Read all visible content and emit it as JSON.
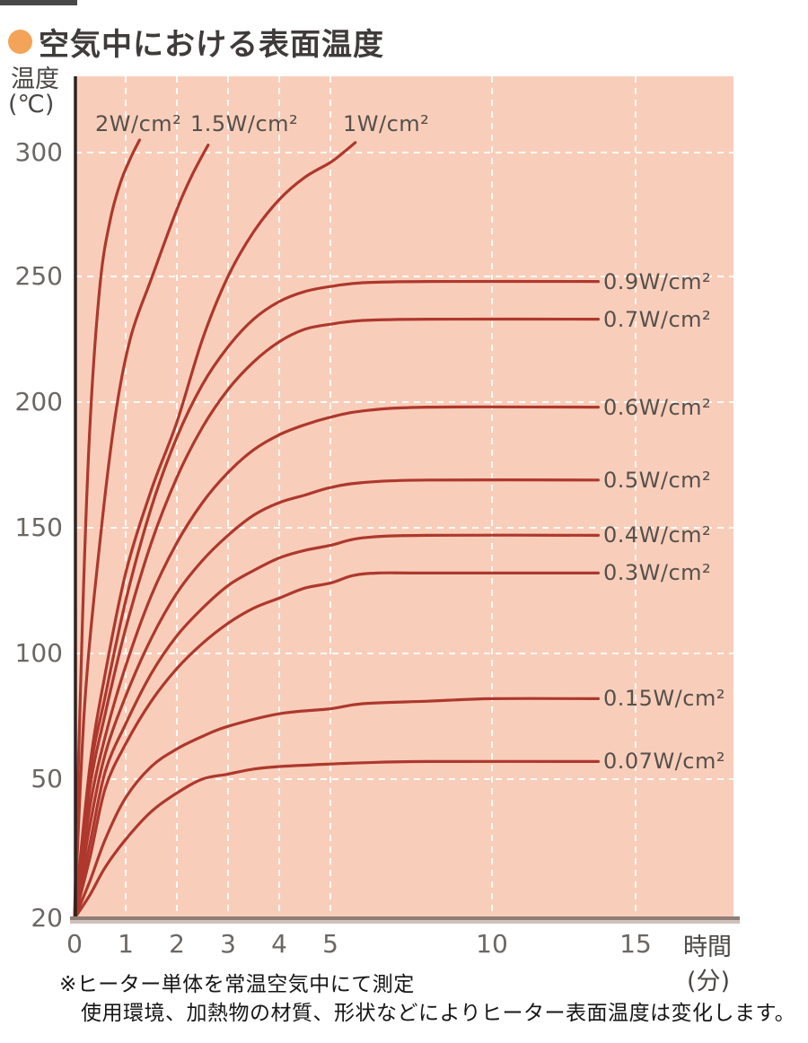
{
  "page": {
    "title": "空気中における表面温度",
    "y_axis_unit_line1": "温度",
    "y_axis_unit_line2": "(℃)",
    "x_axis_unit_line1": "時間",
    "x_axis_unit_line2": "(分)",
    "footnote_line1": "※ヒーター単体を常温空気中にて測定",
    "footnote_line2": "使用環境、加熱物の材質、形状などによりヒーター表面温度は変化します。"
  },
  "colors": {
    "plot_background": "#f8ceba",
    "curve": "#ae382d",
    "grid": "#ffffff",
    "axis": "#2b2422",
    "bottom_bar_dark": "#8f7d76",
    "bottom_bar_light": "#cdc1ba",
    "bullet_accent": "#f3a458",
    "tick_text": "#6b6765",
    "curve_label_text": "#56504b"
  },
  "chart_data": {
    "type": "line",
    "title": "空気中における表面温度",
    "xlabel": "時間(分)",
    "ylabel": "温度(℃)",
    "x_ticks": [
      0,
      1,
      2,
      3,
      4,
      5,
      10,
      15
    ],
    "y_ticks": [
      20,
      50,
      100,
      150,
      200,
      250,
      300
    ],
    "xlim": [
      0,
      15
    ],
    "ylim": [
      20,
      310
    ],
    "grid": true,
    "grid_style": "white dashed",
    "x_scale_note": "x axis compressed beyond 5 minutes",
    "legend_position": "labels at curve ends",
    "series": [
      {
        "name": "2W/cm2",
        "label": "2W/cm²",
        "label_side": "top",
        "plateau_c": null,
        "points": [
          [
            0,
            20
          ],
          [
            0.15,
            110
          ],
          [
            0.3,
            190
          ],
          [
            0.5,
            247
          ],
          [
            0.7,
            273
          ],
          [
            0.9,
            288
          ],
          [
            1.1,
            298
          ],
          [
            1.27,
            305
          ]
        ]
      },
      {
        "name": "1.5W/cm2",
        "label": "1.5W/cm²",
        "label_side": "top",
        "plateau_c": null,
        "points": [
          [
            0,
            20
          ],
          [
            0.2,
            80
          ],
          [
            0.5,
            145
          ],
          [
            0.8,
            195
          ],
          [
            1.1,
            226
          ],
          [
            1.5,
            249
          ],
          [
            2.0,
            277
          ],
          [
            2.3,
            291
          ],
          [
            2.61,
            303
          ]
        ]
      },
      {
        "name": "1W/cm2",
        "label": "1W/cm²",
        "label_side": "top",
        "plateau_c": null,
        "points": [
          [
            0,
            20
          ],
          [
            0.3,
            55
          ],
          [
            0.6,
            92
          ],
          [
            1.0,
            132
          ],
          [
            1.5,
            165
          ],
          [
            2.0,
            192
          ],
          [
            2.5,
            225
          ],
          [
            3.0,
            250
          ],
          [
            3.5,
            268
          ],
          [
            4.0,
            281
          ],
          [
            4.5,
            290
          ],
          [
            5.0,
            296
          ],
          [
            5.4,
            300
          ],
          [
            5.77,
            304
          ]
        ]
      },
      {
        "name": "0.9W/cm2",
        "label": "0.9W/cm²",
        "label_side": "right",
        "plateau_c": 248,
        "points": [
          [
            0,
            20
          ],
          [
            0.3,
            52
          ],
          [
            0.6,
            83
          ],
          [
            1.0,
            121
          ],
          [
            1.5,
            158
          ],
          [
            2.0,
            186
          ],
          [
            2.5,
            207
          ],
          [
            3.0,
            222
          ],
          [
            3.5,
            233
          ],
          [
            4.0,
            240
          ],
          [
            4.5,
            244
          ],
          [
            5.0,
            246
          ],
          [
            6,
            247.5
          ],
          [
            8,
            248
          ],
          [
            13.7,
            248
          ]
        ]
      },
      {
        "name": "0.7W/cm2",
        "label": "0.7W/cm²",
        "label_side": "right",
        "plateau_c": 233,
        "points": [
          [
            0,
            20
          ],
          [
            0.3,
            48
          ],
          [
            0.6,
            76
          ],
          [
            1.0,
            110
          ],
          [
            1.5,
            144
          ],
          [
            2.0,
            170
          ],
          [
            2.5,
            190
          ],
          [
            3.0,
            205
          ],
          [
            3.5,
            216
          ],
          [
            4.0,
            224
          ],
          [
            4.5,
            229
          ],
          [
            5.0,
            231
          ],
          [
            6,
            232.5
          ],
          [
            8,
            233
          ],
          [
            13.7,
            233
          ]
        ]
      },
      {
        "name": "0.6W/cm2",
        "label": "0.6W/cm²",
        "label_side": "right",
        "plateau_c": 198,
        "points": [
          [
            0,
            20
          ],
          [
            0.3,
            44
          ],
          [
            0.6,
            67
          ],
          [
            1.0,
            95
          ],
          [
            1.5,
            123
          ],
          [
            2.0,
            144
          ],
          [
            2.5,
            160
          ],
          [
            3.0,
            172
          ],
          [
            3.5,
            181
          ],
          [
            4.0,
            187
          ],
          [
            4.5,
            191
          ],
          [
            5.0,
            194
          ],
          [
            6,
            196.5
          ],
          [
            8,
            198
          ],
          [
            13.7,
            198
          ]
        ]
      },
      {
        "name": "0.5W/cm2",
        "label": "0.5W/cm²",
        "label_side": "right",
        "plateau_c": 169,
        "points": [
          [
            0,
            20
          ],
          [
            0.3,
            40
          ],
          [
            0.6,
            60
          ],
          [
            1.0,
            83
          ],
          [
            1.5,
            106
          ],
          [
            2.0,
            124
          ],
          [
            2.5,
            137
          ],
          [
            3.0,
            147
          ],
          [
            3.5,
            155
          ],
          [
            4.0,
            160
          ],
          [
            4.5,
            163
          ],
          [
            5.0,
            166
          ],
          [
            6,
            168
          ],
          [
            8,
            169
          ],
          [
            13.7,
            169
          ]
        ]
      },
      {
        "name": "0.4W/cm2",
        "label": "0.4W/cm²",
        "label_side": "right",
        "plateau_c": 147,
        "points": [
          [
            0,
            20
          ],
          [
            0.3,
            36
          ],
          [
            0.6,
            53
          ],
          [
            1.0,
            72
          ],
          [
            1.5,
            92
          ],
          [
            2.0,
            107
          ],
          [
            2.5,
            118
          ],
          [
            3.0,
            127
          ],
          [
            3.5,
            133
          ],
          [
            4.0,
            138
          ],
          [
            4.5,
            141
          ],
          [
            5.0,
            143
          ],
          [
            6,
            146
          ],
          [
            8,
            147
          ],
          [
            13.7,
            147
          ]
        ]
      },
      {
        "name": "0.3W/cm2",
        "label": "0.3W/cm²",
        "label_side": "right",
        "plateau_c": 132,
        "points": [
          [
            0,
            20
          ],
          [
            0.3,
            33
          ],
          [
            0.6,
            48
          ],
          [
            1.0,
            64
          ],
          [
            1.5,
            81
          ],
          [
            2.0,
            94
          ],
          [
            2.5,
            104
          ],
          [
            3.0,
            112
          ],
          [
            3.5,
            118
          ],
          [
            4.0,
            122
          ],
          [
            4.5,
            126
          ],
          [
            5.0,
            128
          ],
          [
            5.7,
            131
          ],
          [
            6.5,
            132
          ],
          [
            8,
            132
          ],
          [
            13.7,
            132
          ]
        ]
      },
      {
        "name": "0.15W/cm2",
        "label": "0.15W/cm²",
        "label_side": "right",
        "plateau_c": 82,
        "points": [
          [
            0,
            20
          ],
          [
            0.3,
            28
          ],
          [
            0.6,
            37
          ],
          [
            1.0,
            46
          ],
          [
            1.5,
            55
          ],
          [
            2.0,
            62
          ],
          [
            2.5,
            67
          ],
          [
            3.0,
            71
          ],
          [
            4.0,
            76
          ],
          [
            5.0,
            78
          ],
          [
            6,
            80
          ],
          [
            8,
            81
          ],
          [
            10,
            82
          ],
          [
            13.7,
            82
          ]
        ]
      },
      {
        "name": "0.07W/cm2",
        "label": "0.07W/cm²",
        "label_side": "right",
        "plateau_c": 57,
        "points": [
          [
            0,
            20
          ],
          [
            0.3,
            25
          ],
          [
            0.6,
            31
          ],
          [
            1.0,
            37
          ],
          [
            1.5,
            43
          ],
          [
            2.0,
            47
          ],
          [
            2.5,
            50
          ],
          [
            3.0,
            52
          ],
          [
            3.5,
            54
          ],
          [
            4.0,
            55
          ],
          [
            5.0,
            56
          ],
          [
            6,
            56.5
          ],
          [
            8,
            57
          ],
          [
            13.7,
            57
          ]
        ]
      }
    ]
  }
}
